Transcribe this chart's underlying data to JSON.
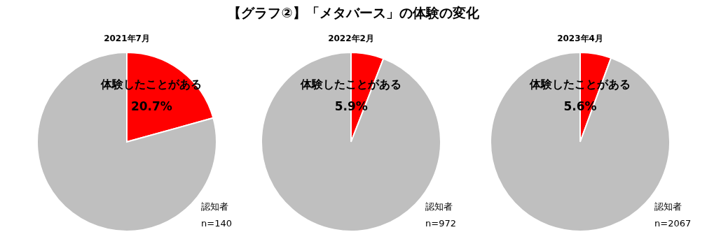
{
  "chart_data": [
    {
      "type": "pie",
      "title": "2021年7月",
      "categories": [
        "体験したことがある",
        null
      ],
      "values": [
        20.7,
        79.3
      ],
      "colors": [
        "#ff0000",
        "#bfbfbf"
      ],
      "value_labels": [
        "20.7%",
        null
      ],
      "annotations": [
        "【グラフ②】「メタバース」の体験の変化",
        "認知者",
        "n=140"
      ]
    },
    {
      "type": "pie",
      "title": "2022年2月",
      "categories": [
        "体験したことがある",
        null
      ],
      "values": [
        5.9,
        94.1
      ],
      "colors": [
        "#ff0000",
        "#bfbfbf"
      ],
      "value_labels": [
        "5.9%",
        null
      ],
      "annotations": [
        "認知者",
        "n=972"
      ]
    },
    {
      "type": "pie",
      "title": "2023年4月",
      "categories": [
        "体験したことがある",
        null
      ],
      "values": [
        5.6,
        94.4
      ],
      "colors": [
        "#ff0000",
        "#bfbfbf"
      ],
      "value_labels": [
        "5.6%",
        null
      ],
      "annotations": [
        "認知者",
        "n=2067"
      ]
    }
  ]
}
